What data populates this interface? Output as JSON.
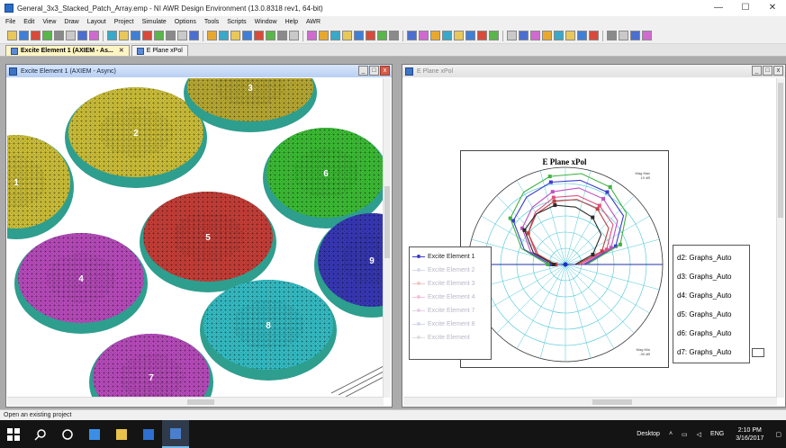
{
  "window": {
    "title": "General_3x3_Stacked_Patch_Array.emp - NI AWR Design Environment (13.0.8318 rev1, 64-bit)",
    "controls": {
      "minimize": "—",
      "maximize": "☐",
      "close": "✕"
    }
  },
  "menu": [
    "File",
    "Edit",
    "View",
    "Draw",
    "Layout",
    "Project",
    "Simulate",
    "Options",
    "Tools",
    "Scripts",
    "Window",
    "Help",
    "AWR"
  ],
  "doc_tabs": [
    {
      "label": "Excite Element 1 (AXIEM - As...",
      "active": true
    },
    {
      "label": "E Plane xPol",
      "active": false
    }
  ],
  "left_window": {
    "title": "Excite Element 1 (AXIEM - Async)",
    "patches": [
      {
        "id": "1",
        "color": "#d8c93c"
      },
      {
        "id": "2",
        "color": "#d8c93c"
      },
      {
        "id": "3",
        "color": "#c2b236"
      },
      {
        "id": "4",
        "color": "#c24fc6"
      },
      {
        "id": "5",
        "color": "#d1423b"
      },
      {
        "id": "6",
        "color": "#3fc637"
      },
      {
        "id": "7",
        "color": "#c24fc6"
      },
      {
        "id": "8",
        "color": "#38c7cf"
      },
      {
        "id": "9",
        "color": "#3b3bc0"
      }
    ]
  },
  "right_window": {
    "title": "E Plane xPol",
    "legend_left": [
      {
        "label": "Excite Element 1",
        "color": "#3f3fc8"
      },
      {
        "label": "Excite Element 2",
        "color": "#d9d9ef"
      },
      {
        "label": "Excite Element 3",
        "color": "#f0c8c8"
      },
      {
        "label": "Excite Element 4",
        "color": "#f3c4d9"
      },
      {
        "label": "Excite Element 7",
        "color": "#e8d0e8"
      },
      {
        "label": "Excite Element 8",
        "color": "#d7d7f0"
      },
      {
        "label": "Excite Element",
        "color": "#e0e0e0"
      }
    ],
    "legend_right": [
      "d2: Graphs_Auto",
      "d3: Graphs_Auto",
      "d4: Graphs_Auto",
      "d5: Graphs_Auto",
      "d6: Graphs_Auto",
      "d7: Graphs_Auto"
    ]
  },
  "chart_data": {
    "type": "line",
    "title": "E Plane xPol",
    "series": [
      {
        "name": "Excite Element 1",
        "color": "#3b3bd0",
        "values": [
          0.2,
          0.55,
          0.78,
          0.86,
          0.88,
          0.86,
          0.8,
          0.7,
          0.45,
          0.15
        ]
      },
      {
        "name": "",
        "color": "#c050c0",
        "values": [
          0.18,
          0.5,
          0.7,
          0.78,
          0.8,
          0.76,
          0.68,
          0.58,
          0.38,
          0.12
        ]
      },
      {
        "name": "",
        "color": "#e05080",
        "values": [
          0.15,
          0.45,
          0.64,
          0.7,
          0.72,
          0.7,
          0.62,
          0.5,
          0.32,
          0.1
        ]
      },
      {
        "name": "",
        "color": "#c04040",
        "values": [
          0.12,
          0.4,
          0.58,
          0.66,
          0.68,
          0.66,
          0.6,
          0.5,
          0.3,
          0.1
        ]
      },
      {
        "name": "",
        "color": "#2a2a2a",
        "values": [
          0.1,
          0.3,
          0.48,
          0.56,
          0.6,
          0.62,
          0.6,
          0.55,
          0.35,
          0.12
        ]
      },
      {
        "name": "",
        "color": "#40b040",
        "values": [
          0.22,
          0.6,
          0.82,
          0.92,
          0.95,
          0.92,
          0.86,
          0.74,
          0.48,
          0.18
        ]
      }
    ],
    "angles_deg": [
      0,
      20,
      40,
      60,
      80,
      100,
      120,
      140,
      160,
      180
    ]
  },
  "status": {
    "text": "Open an existing project"
  },
  "taskbar": {
    "items": [
      "start",
      "search",
      "task-view",
      "edge",
      "explorer",
      "store",
      "awr"
    ],
    "tray": {
      "desktop": "Desktop",
      "lang": "ENG",
      "time": "2:10 PM",
      "date": "3/16/2017"
    }
  }
}
